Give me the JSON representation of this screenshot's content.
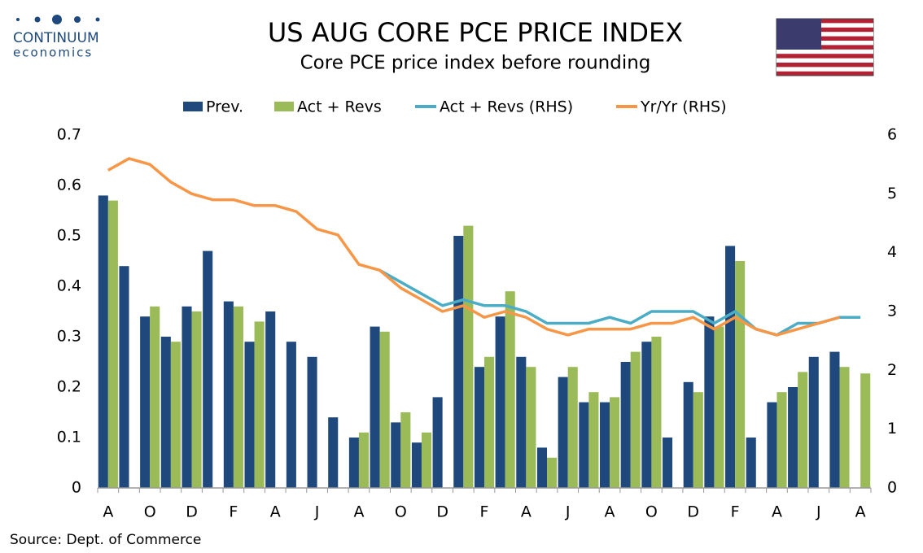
{
  "brand": {
    "name": "CONTINUUM",
    "sub": "economics"
  },
  "source": "Source: Dept. of Commerce",
  "chart_data": {
    "type": "combo",
    "title": "US AUG CORE PCE PRICE INDEX",
    "subtitle": "Core PCE price index before rounding",
    "categories": [
      "A",
      null,
      "O",
      null,
      "D",
      null,
      "F",
      null,
      "A",
      null,
      "J",
      null,
      "A",
      null,
      "O",
      null,
      "D",
      null,
      "F",
      null,
      "A",
      null,
      "J",
      null,
      "A",
      null,
      "O",
      null,
      "D",
      null,
      "F",
      null,
      "A",
      null,
      "J",
      null,
      "A"
    ],
    "ylim": [
      0,
      0.7
    ],
    "yticks": [
      0,
      0.1,
      0.2,
      0.3,
      0.4,
      0.5,
      0.6,
      0.7
    ],
    "y2lim": [
      0,
      6
    ],
    "y2ticks": [
      0,
      1,
      2,
      3,
      4,
      5,
      6
    ],
    "legend": "top",
    "series": [
      {
        "name": "Prev.",
        "kind": "bar",
        "color": "#1f497d",
        "values": [
          0.58,
          0.44,
          0.34,
          0.3,
          0.36,
          0.47,
          0.37,
          0.29,
          0.35,
          0.29,
          0.26,
          0.14,
          0.1,
          0.32,
          0.13,
          0.09,
          0.18,
          0.5,
          0.24,
          0.34,
          0.26,
          0.08,
          0.22,
          0.17,
          0.17,
          0.25,
          0.29,
          0.1,
          0.21,
          0.34,
          0.48,
          0.1,
          0.17,
          0.2,
          0.26,
          0.27,
          null
        ]
      },
      {
        "name": "Act + Revs",
        "kind": "bar",
        "color": "#9bbb59",
        "values": [
          0.57,
          null,
          0.36,
          0.29,
          0.35,
          null,
          0.36,
          0.33,
          null,
          null,
          null,
          null,
          0.11,
          0.31,
          0.15,
          0.11,
          null,
          0.52,
          0.26,
          0.39,
          0.24,
          0.06,
          0.24,
          0.19,
          0.18,
          0.27,
          0.3,
          null,
          0.19,
          0.32,
          0.45,
          null,
          0.19,
          0.23,
          null,
          0.24,
          0.227
        ]
      },
      {
        "name": "Act + Revs (RHS)",
        "kind": "line",
        "axis": "y2",
        "color": "#4bacc6",
        "values": [
          null,
          null,
          null,
          null,
          null,
          null,
          null,
          null,
          null,
          null,
          null,
          null,
          null,
          3.7,
          3.5,
          3.3,
          3.1,
          3.2,
          3.1,
          3.1,
          3.0,
          2.8,
          2.8,
          2.8,
          2.9,
          2.8,
          3.0,
          3.0,
          3.0,
          2.8,
          3.0,
          2.7,
          2.6,
          2.8,
          2.8,
          2.9,
          2.9
        ]
      },
      {
        "name": "Yr/Yr (RHS)",
        "kind": "line",
        "axis": "y2",
        "color": "#f79646",
        "values": [
          5.4,
          5.6,
          5.5,
          5.2,
          5.0,
          4.9,
          4.9,
          4.8,
          4.8,
          4.7,
          4.4,
          4.3,
          3.8,
          3.7,
          3.4,
          3.2,
          3.0,
          3.1,
          2.9,
          3.0,
          2.9,
          2.7,
          2.6,
          2.7,
          2.7,
          2.7,
          2.8,
          2.8,
          2.9,
          2.7,
          2.9,
          2.7,
          2.6,
          2.7,
          2.8,
          2.9,
          null
        ]
      }
    ]
  }
}
